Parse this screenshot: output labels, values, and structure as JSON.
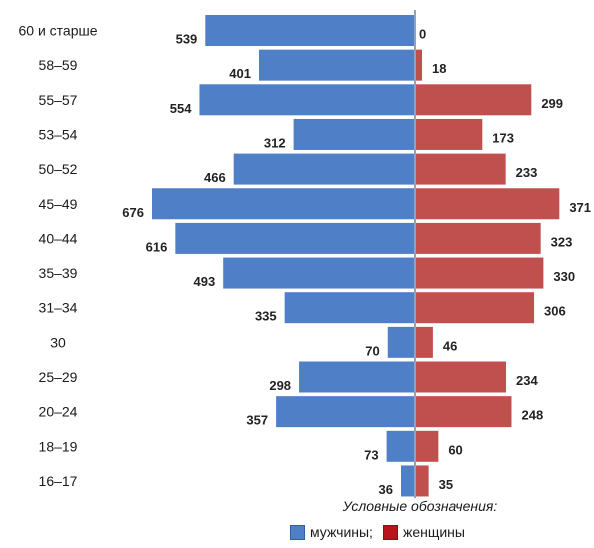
{
  "chart_data": {
    "type": "bar",
    "orientation": "horizontal",
    "subtype": "population-pyramid",
    "categories": [
      "60 и старше",
      "58–59",
      "55–57",
      "53–54",
      "50–52",
      "45–49",
      "40–44",
      "35–39",
      "31–34",
      "30",
      "25–29",
      "20–24",
      "18–19",
      "16–17"
    ],
    "series": [
      {
        "name": "мужчины",
        "side": "left",
        "color": "#4f7fc6",
        "values": [
          539,
          401,
          554,
          312,
          466,
          676,
          616,
          493,
          335,
          70,
          298,
          357,
          73,
          36
        ]
      },
      {
        "name": "женщины",
        "side": "right",
        "color": "#c0504d",
        "values": [
          0,
          18,
          299,
          173,
          233,
          371,
          323,
          330,
          306,
          46,
          234,
          248,
          60,
          35
        ]
      }
    ],
    "xlim": [
      -676,
      676
    ],
    "grid": false,
    "legend_position": "bottom-right"
  },
  "legend": {
    "title": "Условные обозначения:",
    "items": [
      {
        "label": "мужчины;",
        "color": "#4f7fc6",
        "border": "#2e5fa8"
      },
      {
        "label": "женщины",
        "color": "#b8141e",
        "border": "#8a0f16"
      }
    ]
  }
}
